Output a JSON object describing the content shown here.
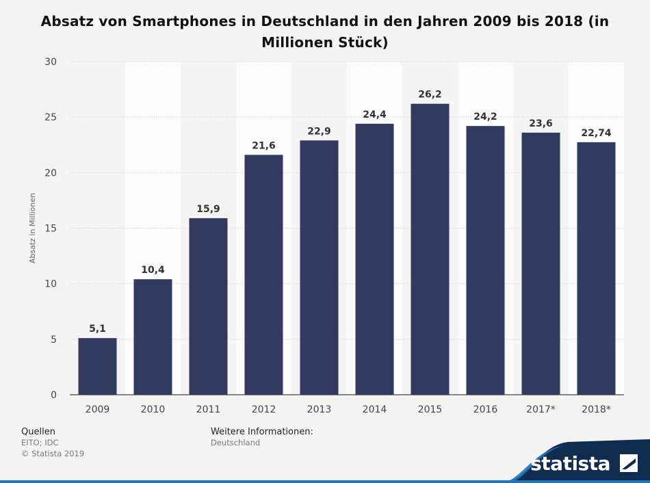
{
  "chart_data": {
    "type": "bar",
    "title": "Absatz von Smartphones in Deutschland in den Jahren 2009 bis 2018 (in Millionen Stück)",
    "ylabel": "Absatz in Millionen",
    "xlabel": "",
    "categories": [
      "2009",
      "2010",
      "2011",
      "2012",
      "2013",
      "2014",
      "2015",
      "2016",
      "2017*",
      "2018*"
    ],
    "values": [
      5.1,
      10.4,
      15.9,
      21.6,
      22.9,
      24.4,
      26.2,
      24.2,
      23.6,
      22.74
    ],
    "value_labels": [
      "5,1",
      "10,4",
      "15,9",
      "21,6",
      "22,9",
      "24,4",
      "26,2",
      "24,2",
      "23,6",
      "22,74"
    ],
    "ylim": [
      0,
      30
    ],
    "yticks": [
      "0",
      "5",
      "10",
      "15",
      "20",
      "25",
      "30"
    ],
    "grid": true,
    "bar_color": "#323a60"
  },
  "footer": {
    "sources_title": "Quellen",
    "sources_line1": "EITO; IDC",
    "sources_line2": "© Statista 2019",
    "further_title": "Weitere Informationen:",
    "further_line1": "Deutschland"
  },
  "brand": {
    "name": "statista",
    "color": "#1f76bd",
    "dark": "#0f2b4d"
  }
}
